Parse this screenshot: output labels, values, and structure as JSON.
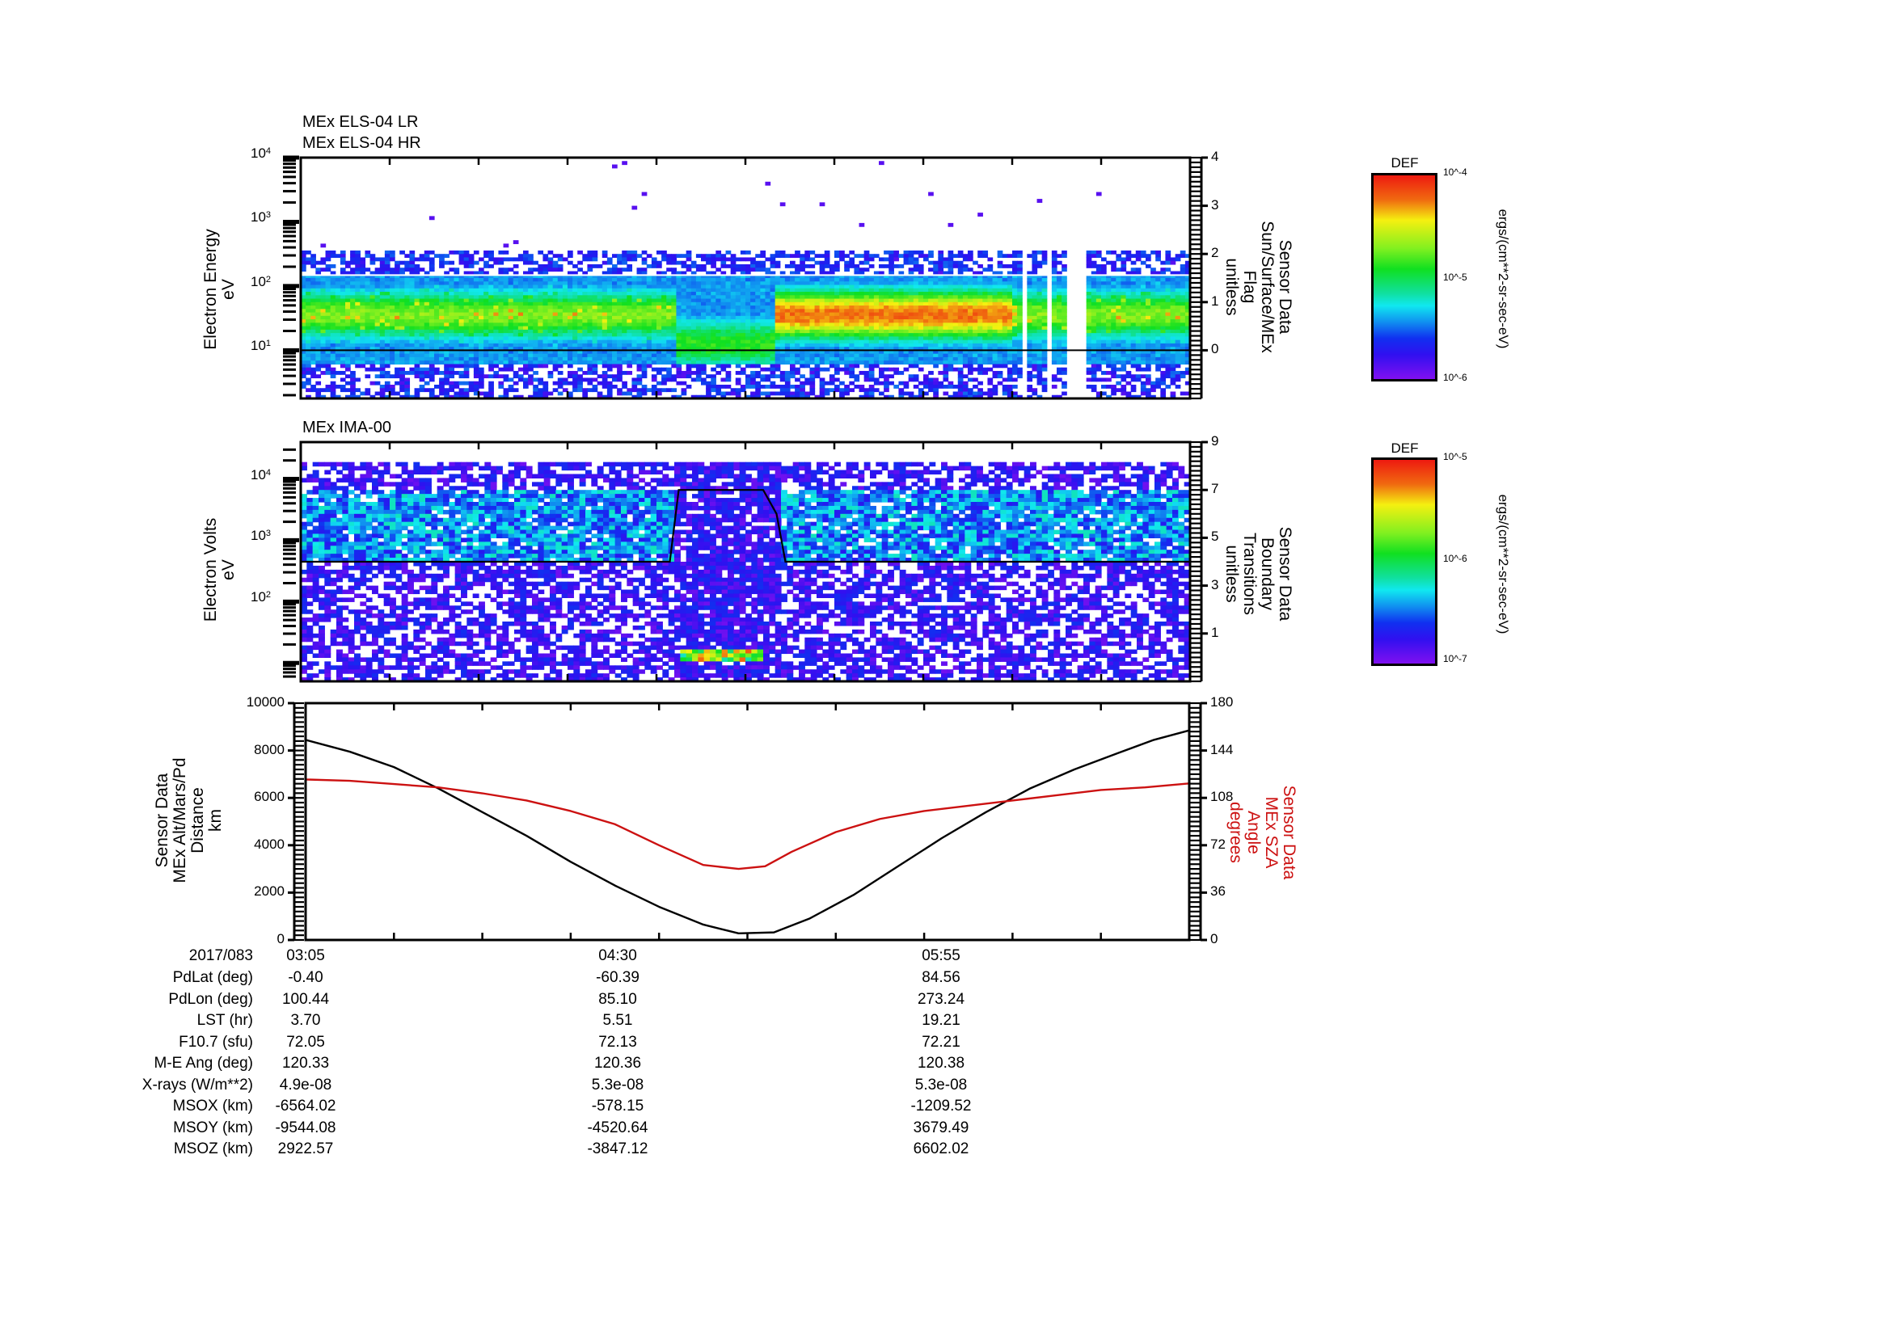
{
  "panels": {
    "els": {
      "titles": [
        "MEx ELS-04 LR",
        "MEx ELS-04 HR"
      ],
      "ylabel": [
        "Electron Energy",
        "eV"
      ],
      "yticks": [
        "10^1",
        "10^2",
        "10^3",
        "10^4"
      ],
      "right_label": [
        "Sensor Data",
        "Sun/Surface/MEx",
        "Flag",
        "unitless"
      ],
      "right_ticks": [
        "0",
        "1",
        "2",
        "3",
        "4"
      ]
    },
    "ima": {
      "titles": [
        "MEx IMA-00"
      ],
      "ylabel": [
        "Electron Volts",
        "eV"
      ],
      "yticks": [
        "10^2",
        "10^3",
        "10^4"
      ],
      "right_label": [
        "Sensor Data",
        "Boundary",
        "Transitions",
        "unitless"
      ],
      "right_ticks": [
        "1",
        "3",
        "5",
        "7",
        "9"
      ]
    },
    "orbit": {
      "ylabel": [
        "Sensor Data",
        "MEx Alt/Mars/Pd",
        "Distance",
        "km"
      ],
      "yticks": [
        "0",
        "2000",
        "4000",
        "6000",
        "8000",
        "10000"
      ],
      "right_label": [
        "Sensor Data",
        "MEx SZA",
        "Angle",
        "degrees"
      ],
      "right_ticks": [
        "0",
        "36",
        "72",
        "108",
        "144",
        "180"
      ]
    }
  },
  "colorbars": [
    {
      "title": "DEF",
      "ticks": [
        "10^-4",
        "10^-5",
        "10^-6"
      ],
      "unit": "ergs/(cm**2-sr-sec-eV)"
    },
    {
      "title": "DEF",
      "ticks": [
        "10^-5",
        "10^-6",
        "10^-7"
      ],
      "unit": "ergs/(cm**2-sr-sec-eV)"
    }
  ],
  "ephemeris": {
    "date_label": "2017/083",
    "times": [
      "03:05",
      "04:30",
      "05:55"
    ],
    "rows": [
      {
        "label": "PdLat (deg)",
        "values": [
          "-0.40",
          "-60.39",
          "84.56"
        ]
      },
      {
        "label": "PdLon (deg)",
        "values": [
          "100.44",
          "85.10",
          "273.24"
        ]
      },
      {
        "label": "LST (hr)",
        "values": [
          "3.70",
          "5.51",
          "19.21"
        ]
      },
      {
        "label": "F10.7 (sfu)",
        "values": [
          "72.05",
          "72.13",
          "72.21"
        ]
      },
      {
        "label": "M-E Ang (deg)",
        "values": [
          "120.33",
          "120.36",
          "120.38"
        ]
      },
      {
        "label": "X-rays (W/m**2)",
        "values": [
          "4.9e-08",
          "5.3e-08",
          "5.3e-08"
        ]
      },
      {
        "label": "MSOX (km)",
        "values": [
          "-6564.02",
          "-578.15",
          "-1209.52"
        ]
      },
      {
        "label": "MSOY (km)",
        "values": [
          "-9544.08",
          "-4520.64",
          "3679.49"
        ]
      },
      {
        "label": "MSOZ (km)",
        "values": [
          "2922.57",
          "-3847.12",
          "6602.02"
        ]
      }
    ]
  },
  "colors": {
    "sza_line": "#cc1111",
    "alt_line": "#000000"
  },
  "chart_data": [
    {
      "type": "heatmap",
      "title": "MEx ELS-04 LR / MEx ELS-04 HR",
      "xlabel": "UT 2017/083",
      "ylabel": "Electron Energy (eV)",
      "yscale": "log",
      "ylim": [
        1,
        10000
      ],
      "x_ticks": [
        "03:05",
        "04:30",
        "05:55"
      ],
      "colorbar": {
        "label": "DEF ergs/(cm**2-sr-sec-eV)",
        "range": [
          1e-06,
          0.0001
        ]
      },
      "overlay": {
        "name": "Sun/Surface/MEx Flag",
        "right_ylim": [
          -1,
          4
        ],
        "value": 0
      },
      "description": "Broad electron band ~5-200 eV peaking ~30-50 eV; dip/shift to lower energies near pericenter ~04:40-04:55; intense red band at 100 eV after ~04:58; data gaps near 06:30-06:45"
    },
    {
      "type": "heatmap",
      "title": "MEx IMA-00",
      "xlabel": "UT 2017/083",
      "ylabel": "Electron Volts (eV)",
      "yscale": "log",
      "ylim": [
        5,
        30000
      ],
      "x_ticks": [
        "03:05",
        "04:30",
        "05:55"
      ],
      "colorbar": {
        "label": "DEF ergs/(cm**2-sr-sec-eV)",
        "range": [
          1e-07,
          1e-05
        ]
      },
      "overlay": {
        "name": "Boundary Transitions",
        "right_ylim": [
          -1,
          9
        ],
        "x": [
          0.0,
          0.415,
          0.425,
          0.52,
          0.535,
          0.545,
          1.0
        ],
        "y": [
          4,
          4,
          7,
          7,
          6,
          4,
          4
        ]
      },
      "description": "Solar wind ions ~1-4 keV outside, low-energy (~10 eV) heavy ions near 04:40-04:55"
    },
    {
      "type": "line",
      "title": "",
      "x_ticks": [
        "03:05",
        "04:30",
        "05:55"
      ],
      "xlim": [
        "03:05",
        "07:15"
      ],
      "ylim": [
        0,
        10000
      ],
      "right_ylim": [
        0,
        180
      ],
      "ylabel": "Sensor Data MEx Alt/Mars/Pd Distance km",
      "right_ylabel": "Sensor Data MEx SZA Angle degrees",
      "series": [
        {
          "name": "Altitude (km)",
          "axis": "left",
          "color": "#000000",
          "x": [
            0.0,
            0.05,
            0.1,
            0.15,
            0.2,
            0.25,
            0.3,
            0.35,
            0.4,
            0.45,
            0.49,
            0.53,
            0.57,
            0.62,
            0.67,
            0.72,
            0.77,
            0.82,
            0.87,
            0.92,
            0.96,
            1.0
          ],
          "y": [
            8450,
            7950,
            7300,
            6400,
            5400,
            4400,
            3300,
            2300,
            1400,
            650,
            280,
            320,
            900,
            1900,
            3100,
            4300,
            5400,
            6400,
            7200,
            7900,
            8450,
            8850
          ]
        },
        {
          "name": "SZA (deg)",
          "axis": "right",
          "color": "#cc1111",
          "x": [
            0.0,
            0.05,
            0.1,
            0.15,
            0.2,
            0.25,
            0.3,
            0.35,
            0.4,
            0.45,
            0.49,
            0.52,
            0.55,
            0.6,
            0.65,
            0.7,
            0.75,
            0.8,
            0.85,
            0.9,
            0.95,
            1.0
          ],
          "y": [
            122,
            121,
            118.5,
            116,
            111.5,
            106,
            98,
            88,
            72,
            57,
            54,
            56,
            67,
            82,
            92,
            98,
            102,
            106,
            110,
            114,
            116,
            119
          ]
        }
      ]
    }
  ]
}
